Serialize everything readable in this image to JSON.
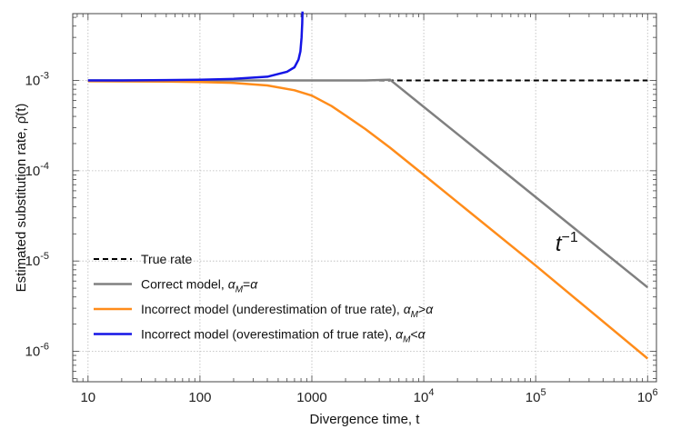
{
  "chart_data": {
    "type": "line",
    "x_scale": "log",
    "y_scale": "log",
    "xlim": [
      7.3,
      1200000
    ],
    "ylim": [
      4.6e-07,
      0.0055
    ],
    "grid": true,
    "xlabel": "Divergence time, t",
    "ylabel": "Estimated substitution rate, ρ̂(t)",
    "x_ticks": [
      {
        "value": 10,
        "base": "10",
        "exp": ""
      },
      {
        "value": 100,
        "base": "100",
        "exp": ""
      },
      {
        "value": 1000,
        "base": "1000",
        "exp": ""
      },
      {
        "value": 10000,
        "base": "10",
        "exp": "4"
      },
      {
        "value": 100000,
        "base": "10",
        "exp": "5"
      },
      {
        "value": 1000000,
        "base": "10",
        "exp": "6"
      }
    ],
    "y_ticks": [
      {
        "value": 0.001,
        "base": "10",
        "exp": "-3"
      },
      {
        "value": 0.0001,
        "base": "10",
        "exp": "-4"
      },
      {
        "value": 1e-05,
        "base": "10",
        "exp": "-5"
      },
      {
        "value": 1e-06,
        "base": "10",
        "exp": "-6"
      }
    ],
    "series": [
      {
        "name": "True rate",
        "color": "#000000",
        "dash": true,
        "x": [
          10,
          1000000
        ],
        "y": [
          0.001,
          0.001
        ]
      },
      {
        "name": "Correct model, αM=α",
        "color": "#808080",
        "dash": false,
        "x": [
          10,
          100,
          1000,
          3000,
          5000,
          10000,
          100000,
          1000000
        ],
        "y": [
          0.001,
          0.001,
          0.001,
          0.001,
          0.00102,
          0.00051,
          5.1e-05,
          5.1e-06
        ]
      },
      {
        "name": "Incorrect model (underestimation of true rate), αM>α",
        "color": "#ff8c1a",
        "dash": false,
        "x": [
          10,
          50,
          100,
          200,
          400,
          700,
          1000,
          1500,
          2000,
          3000,
          5000,
          10000,
          100000,
          1000000
        ],
        "y": [
          0.00098,
          0.00097,
          0.00096,
          0.00094,
          0.00088,
          0.00078,
          0.00068,
          0.00052,
          0.00041,
          0.00029,
          0.00018,
          9e-05,
          8.9e-06,
          8.3e-07
        ]
      },
      {
        "name": "Incorrect model (overestimation of true rate), αM<α",
        "color": "#1515e6",
        "dash": false,
        "x": [
          10,
          20,
          50,
          100,
          200,
          400,
          600,
          700,
          760,
          790,
          810,
          820,
          825
        ],
        "y": [
          0.001,
          0.001,
          0.00101,
          0.00102,
          0.00104,
          0.0011,
          0.00125,
          0.0014,
          0.0017,
          0.0021,
          0.003,
          0.0043,
          0.0058
        ]
      }
    ],
    "legend_labels": [
      {
        "pre": "True rate",
        "sub": "",
        "mid": "",
        "post": ""
      },
      {
        "pre": "Correct model, ",
        "sub": "M",
        "mid": "",
        "post": "=α"
      },
      {
        "pre": "Incorrect model (underestimation of true rate), ",
        "sub": "M",
        "mid": "",
        "post": ">α"
      },
      {
        "pre": "Incorrect model (overestimation of true rate), ",
        "sub": "M",
        "mid": "",
        "post": "<α"
      }
    ],
    "legend_position": "bottom-left",
    "annotation": {
      "base": "t",
      "exp": "−1",
      "x": 150000,
      "y": 1.3e-05
    }
  }
}
